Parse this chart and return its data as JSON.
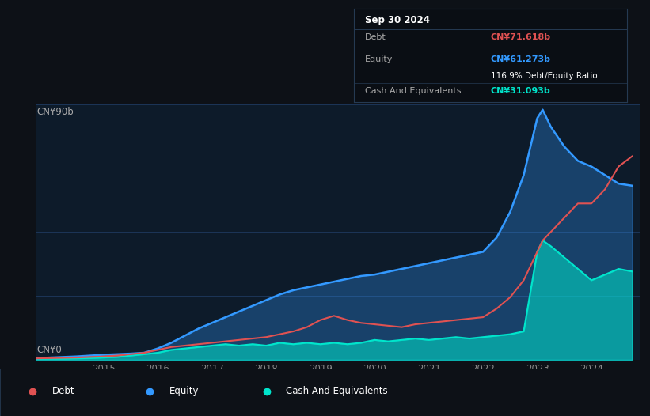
{
  "bg_color": "#0d1117",
  "plot_bg_color": "#0d1b2a",
  "grid_color": "#1e3a5f",
  "y_label_top": "CN¥90b",
  "y_label_bottom": "CN¥0",
  "x_ticks": [
    2015,
    2016,
    2017,
    2018,
    2019,
    2020,
    2021,
    2022,
    2023,
    2024
  ],
  "tooltip_title": "Sep 30 2024",
  "tooltip_debt_label": "Debt",
  "tooltip_debt_value": "CN¥71.618b",
  "tooltip_equity_label": "Equity",
  "tooltip_equity_value": "CN¥61.273b",
  "tooltip_ratio": "116.9% Debt/Equity Ratio",
  "tooltip_cash_label": "Cash And Equivalents",
  "tooltip_cash_value": "CN¥31.093b",
  "debt_color": "#e05252",
  "equity_color": "#3399ff",
  "cash_color": "#00e5cc",
  "legend_items": [
    "Debt",
    "Equity",
    "Cash And Equivalents"
  ],
  "years": [
    2013.75,
    2014.0,
    2014.25,
    2014.5,
    2014.75,
    2015.0,
    2015.25,
    2015.5,
    2015.75,
    2016.0,
    2016.25,
    2016.5,
    2016.75,
    2017.0,
    2017.25,
    2017.5,
    2017.75,
    2018.0,
    2018.25,
    2018.5,
    2018.75,
    2019.0,
    2019.25,
    2019.5,
    2019.75,
    2020.0,
    2020.25,
    2020.5,
    2020.75,
    2021.0,
    2021.25,
    2021.5,
    2021.75,
    2022.0,
    2022.25,
    2022.5,
    2022.75,
    2023.0,
    2023.1,
    2023.25,
    2023.5,
    2023.75,
    2024.0,
    2024.25,
    2024.5,
    2024.75
  ],
  "debt": [
    0.5,
    0.6,
    0.7,
    0.8,
    1.0,
    1.2,
    1.5,
    2.0,
    2.5,
    3.5,
    4.5,
    5.0,
    5.5,
    6.0,
    6.5,
    7.0,
    7.5,
    8.0,
    9.0,
    10.0,
    11.5,
    14.0,
    15.5,
    14.0,
    13.0,
    12.5,
    12.0,
    11.5,
    12.5,
    13.0,
    13.5,
    14.0,
    14.5,
    15.0,
    18.0,
    22.0,
    28.0,
    38.0,
    42.0,
    45.0,
    50.0,
    55.0,
    55.0,
    60.0,
    68.0,
    71.618
  ],
  "equity": [
    0.5,
    0.8,
    1.0,
    1.2,
    1.5,
    1.8,
    2.0,
    2.2,
    2.5,
    4.0,
    6.0,
    8.5,
    11.0,
    13.0,
    15.0,
    17.0,
    19.0,
    21.0,
    23.0,
    24.5,
    25.5,
    26.5,
    27.5,
    28.5,
    29.5,
    30.0,
    31.0,
    32.0,
    33.0,
    34.0,
    35.0,
    36.0,
    37.0,
    38.0,
    43.0,
    52.0,
    65.0,
    85.0,
    88.0,
    82.0,
    75.0,
    70.0,
    68.0,
    65.0,
    62.0,
    61.273
  ],
  "cash": [
    0.3,
    0.4,
    0.4,
    0.5,
    0.6,
    0.8,
    1.0,
    1.5,
    2.0,
    2.5,
    3.5,
    4.0,
    4.5,
    5.0,
    5.5,
    5.0,
    5.5,
    5.0,
    6.0,
    5.5,
    6.0,
    5.5,
    6.0,
    5.5,
    6.0,
    7.0,
    6.5,
    7.0,
    7.5,
    7.0,
    7.5,
    8.0,
    7.5,
    8.0,
    8.5,
    9.0,
    10.0,
    38.0,
    42.0,
    40.0,
    36.0,
    32.0,
    28.0,
    30.0,
    32.0,
    31.093
  ],
  "ylim": [
    0,
    90
  ],
  "xlim": [
    2013.75,
    2024.9
  ]
}
